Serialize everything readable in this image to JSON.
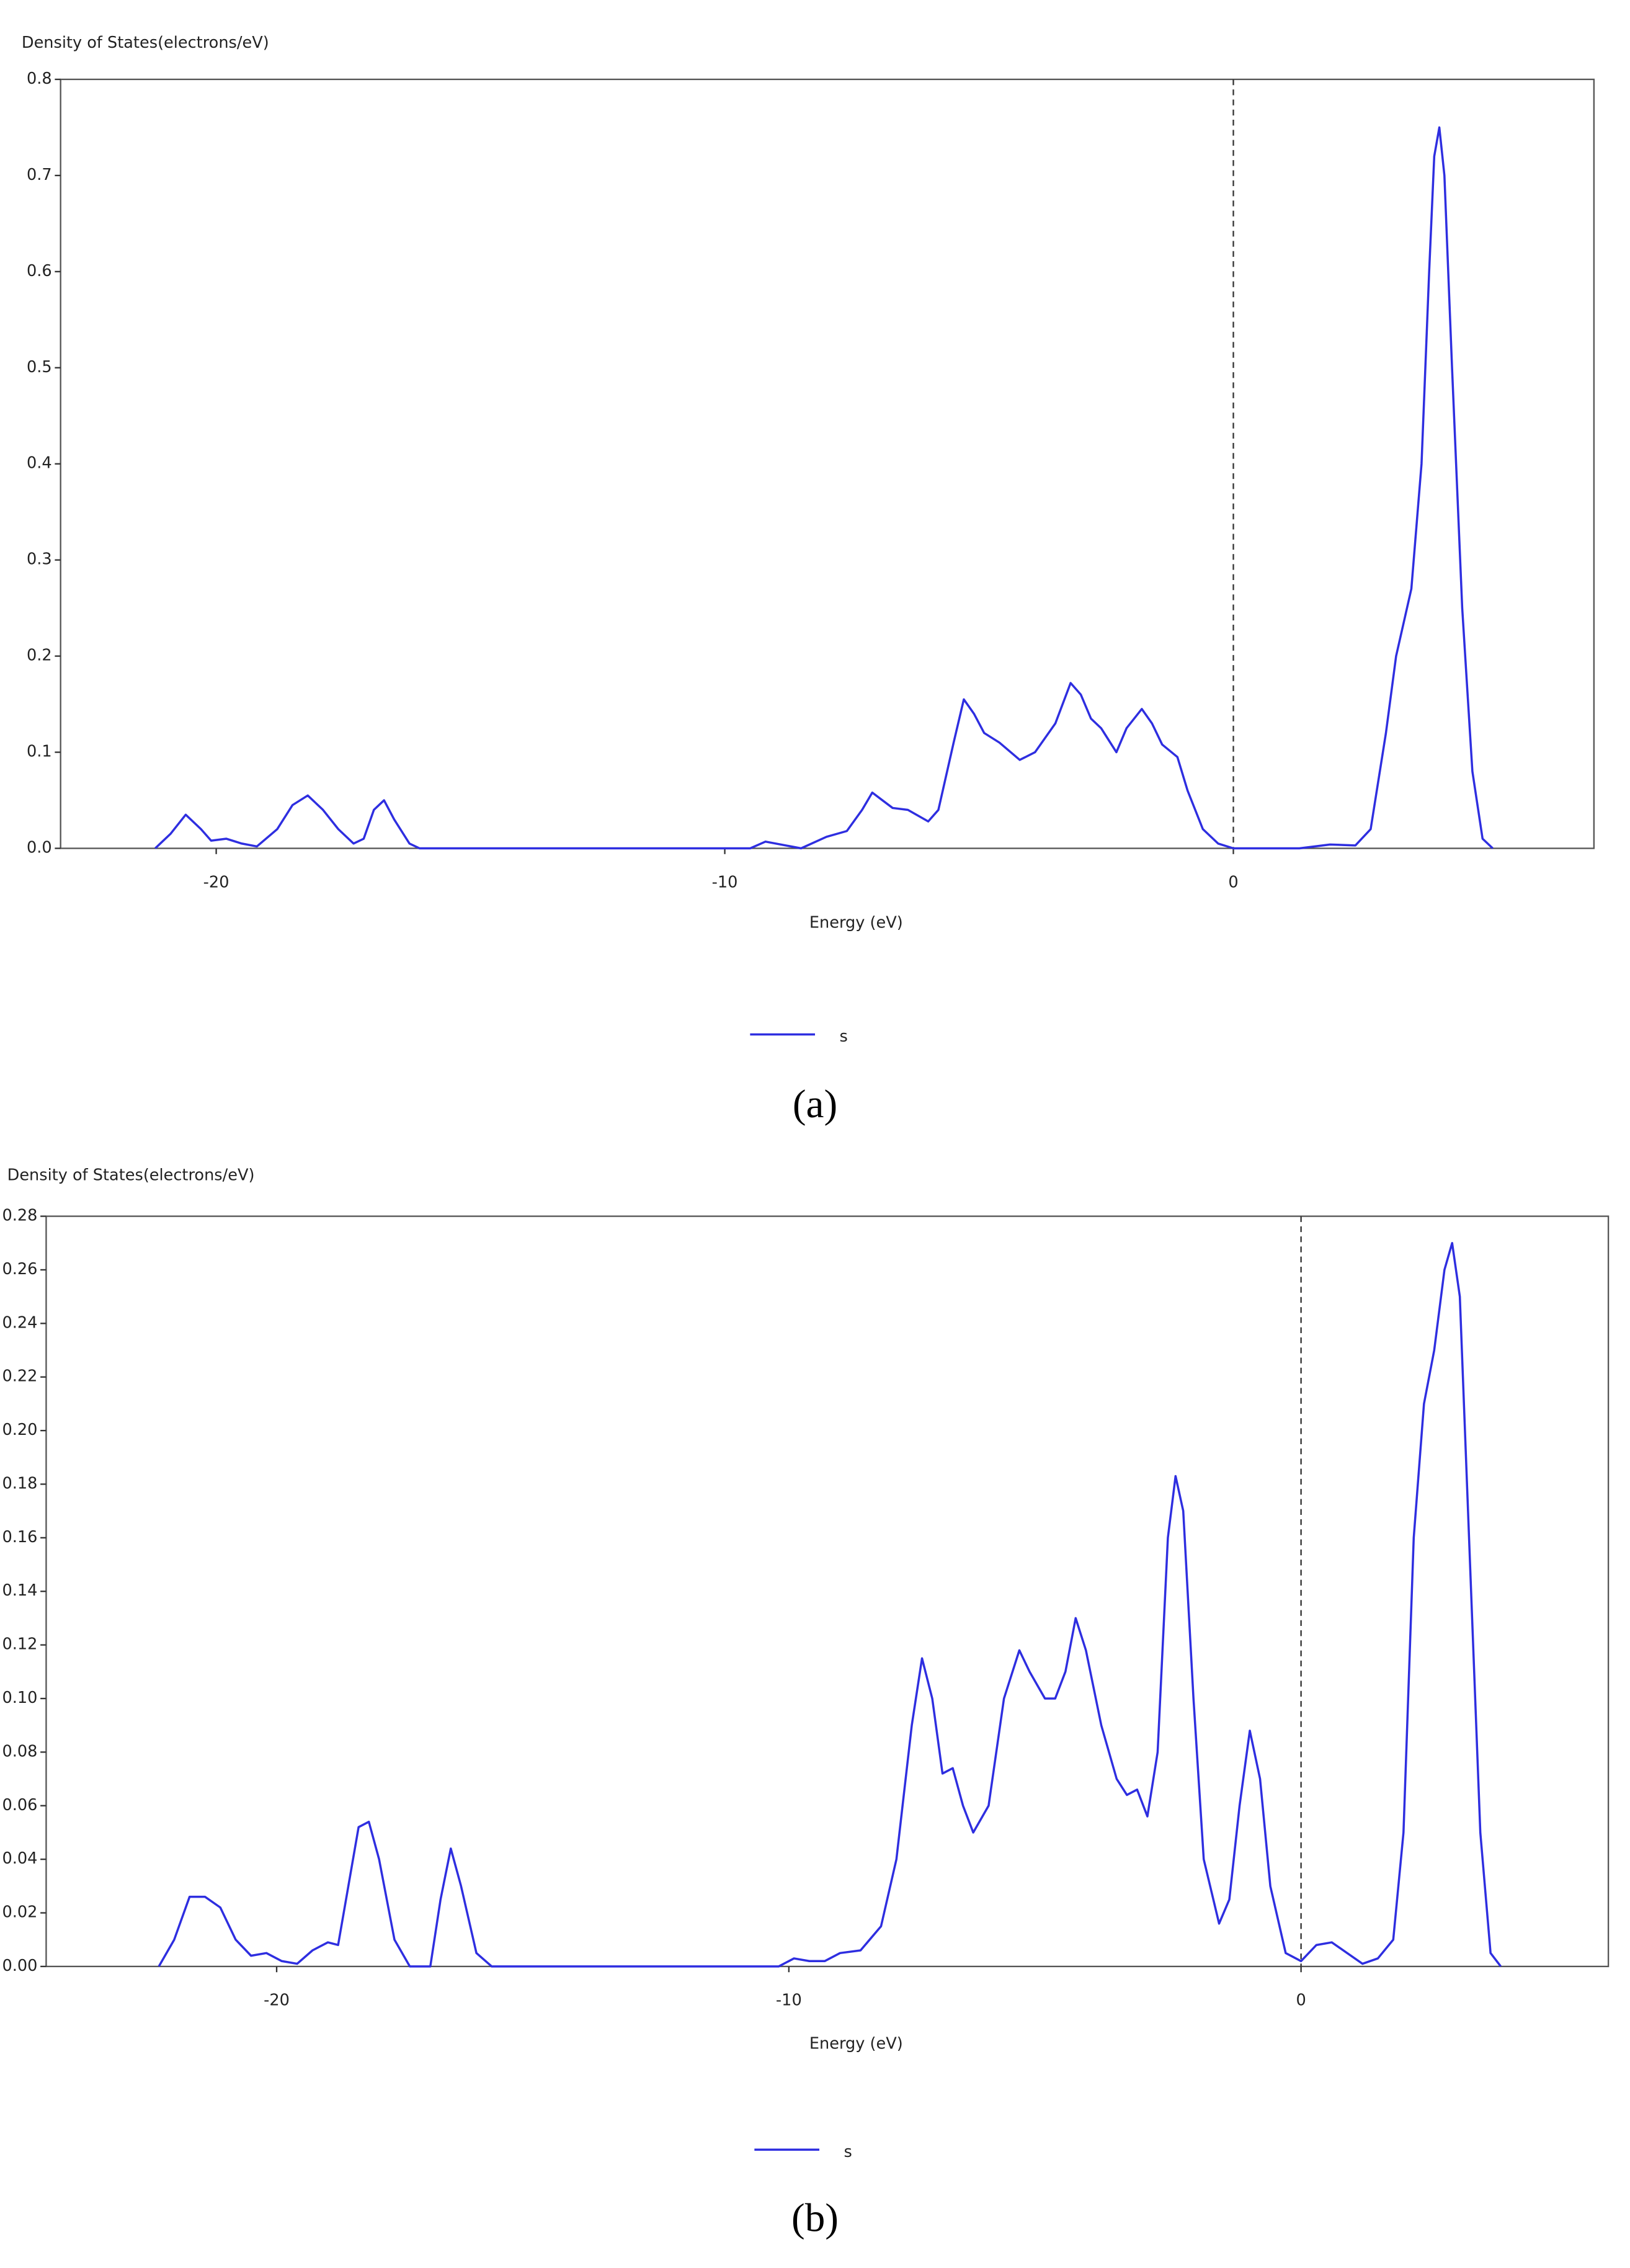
{
  "chart_data": [
    {
      "type": "line",
      "y_label": "Density of States(electrons/eV)",
      "x_label": "Energy (eV)",
      "caption": "(a)",
      "xlim": [
        -23.06,
        7.09
      ],
      "ylim": [
        0,
        0.8
      ],
      "xticks": [
        -20,
        -10,
        0
      ],
      "yticks": [
        {
          "value": 0,
          "label": "0.0"
        },
        0.1,
        0.2,
        0.3,
        0.4,
        0.5,
        0.6,
        0.7,
        0.8
      ],
      "vline": 0,
      "x": [
        -21.2,
        -20.9,
        -20.6,
        -20.3,
        -20.1,
        -19.8,
        -19.5,
        -19.2,
        -18.8,
        -18.5,
        -18.2,
        -17.9,
        -17.6,
        -17.3,
        -17.1,
        -16.9,
        -16.7,
        -16.5,
        -16.2,
        -16.0,
        -9.5,
        -9.2,
        -8.9,
        -8.5,
        -8.0,
        -7.6,
        -7.3,
        -7.1,
        -6.9,
        -6.7,
        -6.4,
        -6.0,
        -5.8,
        -5.5,
        -5.3,
        -5.1,
        -4.9,
        -4.6,
        -4.2,
        -3.9,
        -3.5,
        -3.2,
        -3.0,
        -2.8,
        -2.6,
        -2.3,
        -2.1,
        -1.8,
        -1.6,
        -1.4,
        -1.1,
        -0.9,
        -0.6,
        -0.3,
        0,
        1.3,
        1.9,
        2.4,
        2.7,
        3.0,
        3.2,
        3.5,
        3.7,
        3.85,
        3.95,
        4.05,
        4.15,
        4.3,
        4.5,
        4.7,
        4.9,
        5.1
      ],
      "series": [
        {
          "name": "s",
          "color": "#2e2ee0",
          "values": [
            0,
            0.015,
            0.035,
            0.02,
            0.008,
            0.01,
            0.005,
            0.002,
            0.02,
            0.045,
            0.055,
            0.04,
            0.02,
            0.005,
            0.01,
            0.04,
            0.05,
            0.03,
            0.005,
            0,
            0,
            0.007,
            0.004,
            0,
            0.012,
            0.018,
            0.04,
            0.058,
            0.05,
            0.042,
            0.04,
            0.028,
            0.04,
            0.11,
            0.155,
            0.14,
            0.12,
            0.11,
            0.092,
            0.1,
            0.13,
            0.172,
            0.16,
            0.135,
            0.125,
            0.1,
            0.125,
            0.145,
            0.13,
            0.108,
            0.095,
            0.06,
            0.02,
            0.005,
            0,
            0,
            0.004,
            0.003,
            0.02,
            0.12,
            0.2,
            0.27,
            0.4,
            0.6,
            0.72,
            0.75,
            0.7,
            0.5,
            0.25,
            0.08,
            0.01,
            0
          ]
        }
      ]
    },
    {
      "type": "line",
      "y_label": "Density of States(electrons/eV)",
      "x_label": "Energy (eV)",
      "caption": "(b)",
      "xlim": [
        -24.5,
        6.0
      ],
      "ylim": [
        0,
        0.28
      ],
      "xticks": [
        -20,
        -10,
        0
      ],
      "yticks": [
        {
          "value": 0,
          "label": "0.00"
        },
        0.02,
        0.04,
        0.06,
        0.08,
        {
          "value": 0.1,
          "label": "0.10"
        },
        0.12,
        0.14,
        0.16,
        0.18,
        {
          "value": 0.2,
          "label": "0.20"
        },
        0.22,
        0.24,
        0.26,
        0.28
      ],
      "vline": 0,
      "x": [
        -22.3,
        -22.0,
        -21.7,
        -21.4,
        -21.1,
        -20.8,
        -20.5,
        -20.2,
        -19.9,
        -19.6,
        -19.3,
        -19.0,
        -18.8,
        -18.6,
        -18.4,
        -18.2,
        -18.0,
        -17.7,
        -17.4,
        -17.0,
        -16.8,
        -16.6,
        -16.4,
        -16.1,
        -15.8,
        -10.2,
        -9.9,
        -9.6,
        -9.3,
        -9.0,
        -8.6,
        -8.2,
        -7.9,
        -7.6,
        -7.4,
        -7.2,
        -7.0,
        -6.8,
        -6.6,
        -6.4,
        -6.1,
        -5.8,
        -5.5,
        -5.3,
        -5.0,
        -4.8,
        -4.6,
        -4.4,
        -4.2,
        -3.9,
        -3.6,
        -3.4,
        -3.2,
        -3.0,
        -2.8,
        -2.6,
        -2.45,
        -2.3,
        -2.1,
        -1.9,
        -1.6,
        -1.4,
        -1.2,
        -1.0,
        -0.8,
        -0.6,
        -0.3,
        0,
        0.3,
        0.6,
        0.9,
        1.2,
        1.5,
        1.8,
        2.0,
        2.2,
        2.4,
        2.6,
        2.8,
        2.95,
        3.1,
        3.3,
        3.5,
        3.7,
        3.9
      ],
      "series": [
        {
          "name": "s",
          "color": "#2e2ee0",
          "values": [
            0,
            0.01,
            0.026,
            0.026,
            0.022,
            0.01,
            0.004,
            0.005,
            0.002,
            0.001,
            0.006,
            0.009,
            0.008,
            0.03,
            0.052,
            0.054,
            0.04,
            0.01,
            0,
            0,
            0.025,
            0.044,
            0.03,
            0.005,
            0,
            0,
            0.003,
            0.002,
            0.002,
            0.005,
            0.006,
            0.015,
            0.04,
            0.09,
            0.115,
            0.1,
            0.072,
            0.074,
            0.06,
            0.05,
            0.06,
            0.1,
            0.118,
            0.11,
            0.1,
            0.1,
            0.11,
            0.13,
            0.118,
            0.09,
            0.07,
            0.064,
            0.066,
            0.056,
            0.08,
            0.16,
            0.183,
            0.17,
            0.1,
            0.04,
            0.016,
            0.025,
            0.06,
            0.088,
            0.07,
            0.03,
            0.005,
            0.002,
            0.008,
            0.009,
            0.005,
            0.001,
            0.003,
            0.01,
            0.05,
            0.16,
            0.21,
            0.23,
            0.26,
            0.27,
            0.25,
            0.15,
            0.05,
            0.005,
            0
          ]
        }
      ]
    }
  ]
}
